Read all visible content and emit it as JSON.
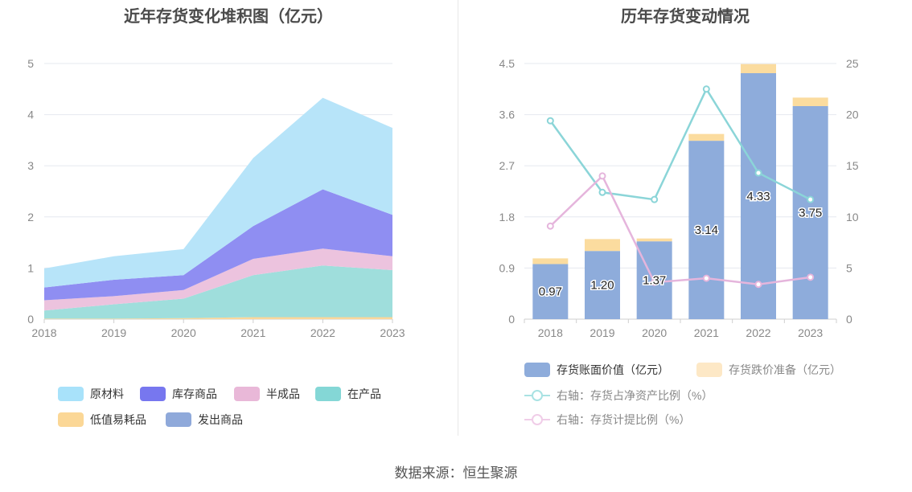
{
  "left": {
    "title": "近年存货变化堆积图（亿元）",
    "legend": [
      "原材料",
      "库存商品",
      "半成品",
      "在产品",
      "低值易耗品",
      "发出商品"
    ]
  },
  "right": {
    "title": "历年存货变动情况",
    "legend": [
      "存货账面价值（亿元）",
      "存货跌价准备（亿元）",
      "右轴：存货占净资产比例（%）",
      "右轴：存货计提比例（%）"
    ]
  },
  "source": "数据来源：恒生聚源",
  "colors": {
    "raw": "#b7e4f9",
    "finished": "#8f8ef2",
    "semi": "#ecc3de",
    "wip": "#9fdedc",
    "lowvalue": "#fad79b",
    "shipped": "#8fa9da",
    "bar_book": "#8eacdb",
    "bar_reserve": "#fbdc9f",
    "line_ratio": "#8bd5d8",
    "line_provision": "#e5b5dc"
  },
  "chart_data": [
    {
      "type": "area",
      "title": "近年存货变化堆积图（亿元）",
      "categories": [
        "2018",
        "2019",
        "2020",
        "2021",
        "2022",
        "2023"
      ],
      "ylim": [
        0,
        5
      ],
      "yticks": [
        "0",
        "1",
        "2",
        "3",
        "4",
        "5"
      ],
      "stacked": true,
      "series": [
        {
          "name": "发出商品",
          "values": [
            0,
            0,
            0,
            0,
            0,
            0
          ]
        },
        {
          "name": "低值易耗品",
          "values": [
            0.01,
            0.01,
            0.02,
            0.04,
            0.04,
            0.04
          ]
        },
        {
          "name": "在产品",
          "values": [
            0.16,
            0.28,
            0.38,
            0.82,
            1.01,
            0.92
          ]
        },
        {
          "name": "半成品",
          "values": [
            0.2,
            0.16,
            0.17,
            0.32,
            0.33,
            0.27
          ]
        },
        {
          "name": "库存商品",
          "values": [
            0.25,
            0.32,
            0.29,
            0.64,
            1.16,
            0.81
          ]
        },
        {
          "name": "原材料",
          "values": [
            0.37,
            0.46,
            0.51,
            1.33,
            1.79,
            1.7
          ]
        }
      ],
      "legend_position": "bottom",
      "grid": true
    },
    {
      "type": "bar",
      "title": "历年存货变动情况",
      "categories": [
        "2018",
        "2019",
        "2020",
        "2021",
        "2022",
        "2023"
      ],
      "ylim": [
        0,
        4.5
      ],
      "yticks": [
        "0",
        "0.9",
        "1.8",
        "2.7",
        "3.6",
        "4.5"
      ],
      "y2lim": [
        0,
        25
      ],
      "y2ticks": [
        "0",
        "5",
        "10",
        "15",
        "20",
        "25"
      ],
      "stacked": true,
      "series": [
        {
          "name": "存货账面价值（亿元）",
          "values": [
            0.97,
            1.2,
            1.37,
            3.14,
            4.33,
            3.75
          ],
          "labels": [
            "0.97",
            "1.20",
            "1.37",
            "3.14",
            "4.33",
            "3.75"
          ]
        },
        {
          "name": "存货跌价准备（亿元）",
          "values": [
            0.1,
            0.21,
            0.05,
            0.12,
            0.16,
            0.15
          ]
        },
        {
          "name": "右轴：存货占净资产比例（%）",
          "type": "line",
          "axis": "right",
          "values": [
            19.4,
            12.4,
            11.7,
            22.5,
            14.3,
            11.7
          ]
        },
        {
          "name": "右轴：存货计提比例（%）",
          "type": "line",
          "axis": "right",
          "values": [
            9.1,
            14.0,
            3.6,
            4.0,
            3.4,
            4.1
          ]
        }
      ],
      "legend_position": "bottom",
      "grid": true
    }
  ]
}
